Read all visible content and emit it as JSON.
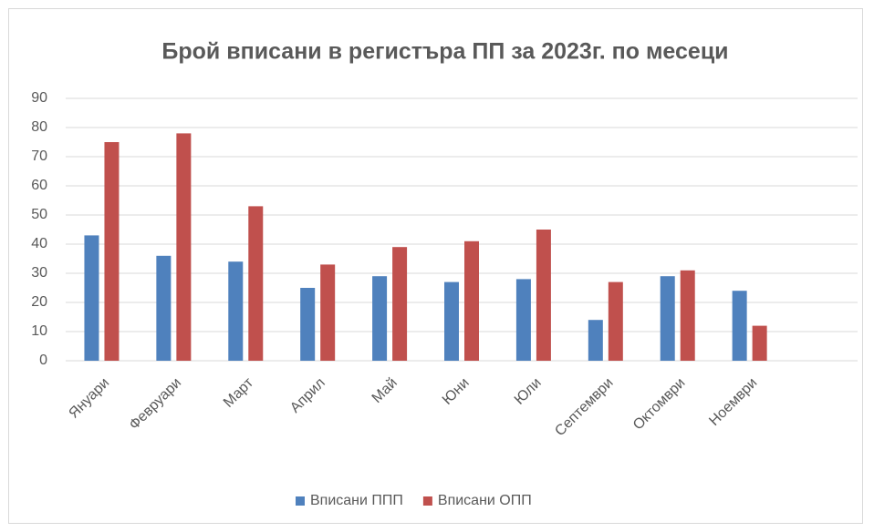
{
  "chart_data": {
    "type": "bar",
    "title": "Брой вписани в регистъра ПП за 2023г. по месеци",
    "categories": [
      "Януари",
      "Февруари",
      "Март",
      "Април",
      "Май",
      "Юни",
      "Юли",
      "Септември",
      "Октомври",
      "Ноември",
      null
    ],
    "series": [
      {
        "name": "Вписани ППП",
        "color": "#4f81bd",
        "values": [
          43,
          36,
          34,
          25,
          29,
          27,
          28,
          14,
          29,
          24,
          null
        ]
      },
      {
        "name": "Вписани ОПП",
        "color": "#c0504d",
        "values": [
          75,
          78,
          53,
          33,
          39,
          41,
          45,
          27,
          31,
          12,
          null
        ]
      }
    ],
    "ylim": [
      0,
      90
    ],
    "yticks": [
      0,
      10,
      20,
      30,
      40,
      50,
      60,
      70,
      80,
      90
    ],
    "grid": true,
    "legend": "bottom"
  }
}
